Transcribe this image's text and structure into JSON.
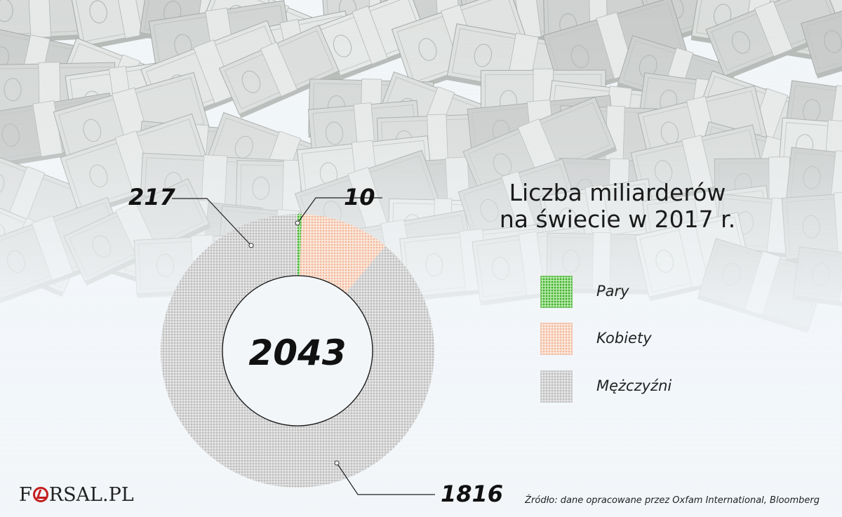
{
  "chart_data": {
    "type": "pie",
    "variant": "donut",
    "title": "Liczba miliarderów\nna świecie w 2017 r.",
    "title_lines": [
      "Liczba miliarderów",
      "na świecie w 2017 r."
    ],
    "total_label": "2043",
    "slices": [
      {
        "name": "Pary",
        "value": 10,
        "label": "10",
        "color": "#5cc04a"
      },
      {
        "name": "Kobiety",
        "value": 217,
        "label": "217",
        "color": "#f4c7b0"
      },
      {
        "name": "Mężczyźni",
        "value": 1816,
        "label": "1816",
        "color": "#c9c9c9"
      }
    ],
    "legend": [
      "Pary",
      "Kobiety",
      "Mężczyźni"
    ],
    "legend_placement": "right"
  },
  "source": "Źródło: dane opracowane przez Oxfam International, Bloomberg",
  "logo": {
    "prefix": "F",
    "suffix": "RSAL.PL",
    "accent": "#c41e1e"
  }
}
